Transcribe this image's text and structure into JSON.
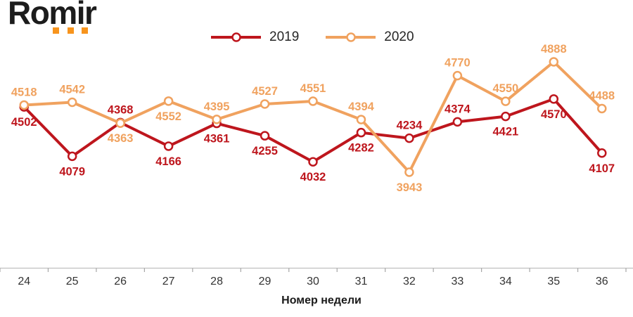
{
  "logo": {
    "text": "Romir",
    "dots_count": 3,
    "dots_color": "#f7941d"
  },
  "colors": {
    "background": "#ffffff",
    "series_2019": "#be161d",
    "series_2020": "#f0a25f",
    "axis_line": "#bfbfbf",
    "axis_tick": "#a6a6a6",
    "axis_text": "#333333",
    "axis_title_text": "#1a1a1a",
    "legend_text": "#262626",
    "marker_fill": "#ffffff"
  },
  "legend": {
    "items": [
      {
        "label": "2019",
        "color": "#be161d"
      },
      {
        "label": "2020",
        "color": "#f0a25f"
      }
    ]
  },
  "chart_data": {
    "type": "line",
    "title": "",
    "xlabel": "Номер недели",
    "ylabel": "",
    "categories": [
      24,
      25,
      26,
      27,
      28,
      29,
      30,
      31,
      32,
      33,
      34,
      35,
      36
    ],
    "series": [
      {
        "name": "2019",
        "color": "#be161d",
        "values": [
          4502,
          4079,
          4368,
          4166,
          4361,
          4255,
          4032,
          4282,
          4234,
          4374,
          4421,
          4570,
          4107
        ],
        "label_positions": [
          "below",
          "below",
          "above",
          "below",
          "below",
          "below",
          "below",
          "below",
          "above",
          "above",
          "below",
          "below",
          "below"
        ]
      },
      {
        "name": "2020",
        "color": "#f0a25f",
        "values": [
          4518,
          4542,
          4363,
          4552,
          4395,
          4527,
          4551,
          4394,
          3943,
          4770,
          4550,
          4888,
          4488
        ],
        "label_positions": [
          "above",
          "above",
          "below",
          "below",
          "above",
          "above",
          "above",
          "above",
          "below",
          "above",
          "above",
          "above",
          "above"
        ]
      }
    ],
    "y_range_shown": [
      3943,
      4888
    ],
    "grid": false,
    "y_axis_visible": false,
    "legend_position": "top-center",
    "data_labels": true,
    "marker": "open-circle"
  }
}
